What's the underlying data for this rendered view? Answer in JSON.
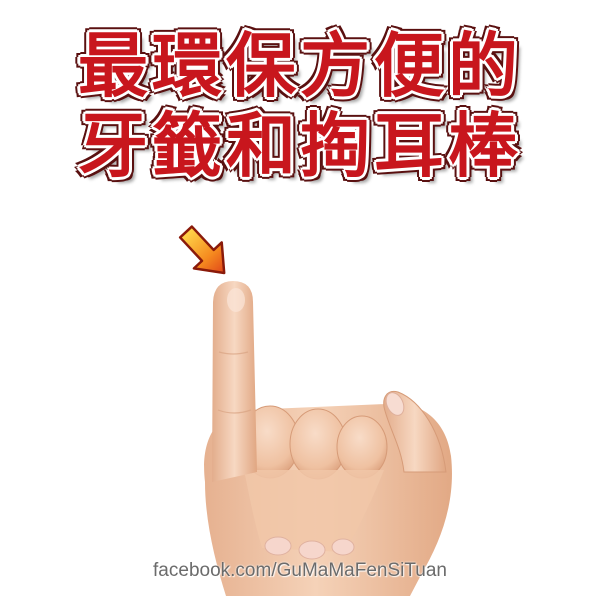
{
  "title": {
    "line1": "最環保方便的",
    "line2": "牙籤和掏耳棒"
  },
  "watermark": {
    "text": "facebook.com/GuMaMaFenSiTuan"
  },
  "icons": {
    "pointer_arrow": "arrow-down-right-icon"
  },
  "colors": {
    "title_fill": "#c8161d",
    "title_outline": "#ffffff",
    "arrow": "#f07a1e",
    "watermark": "#6b6b6b",
    "skin": "#f0c4a4"
  }
}
